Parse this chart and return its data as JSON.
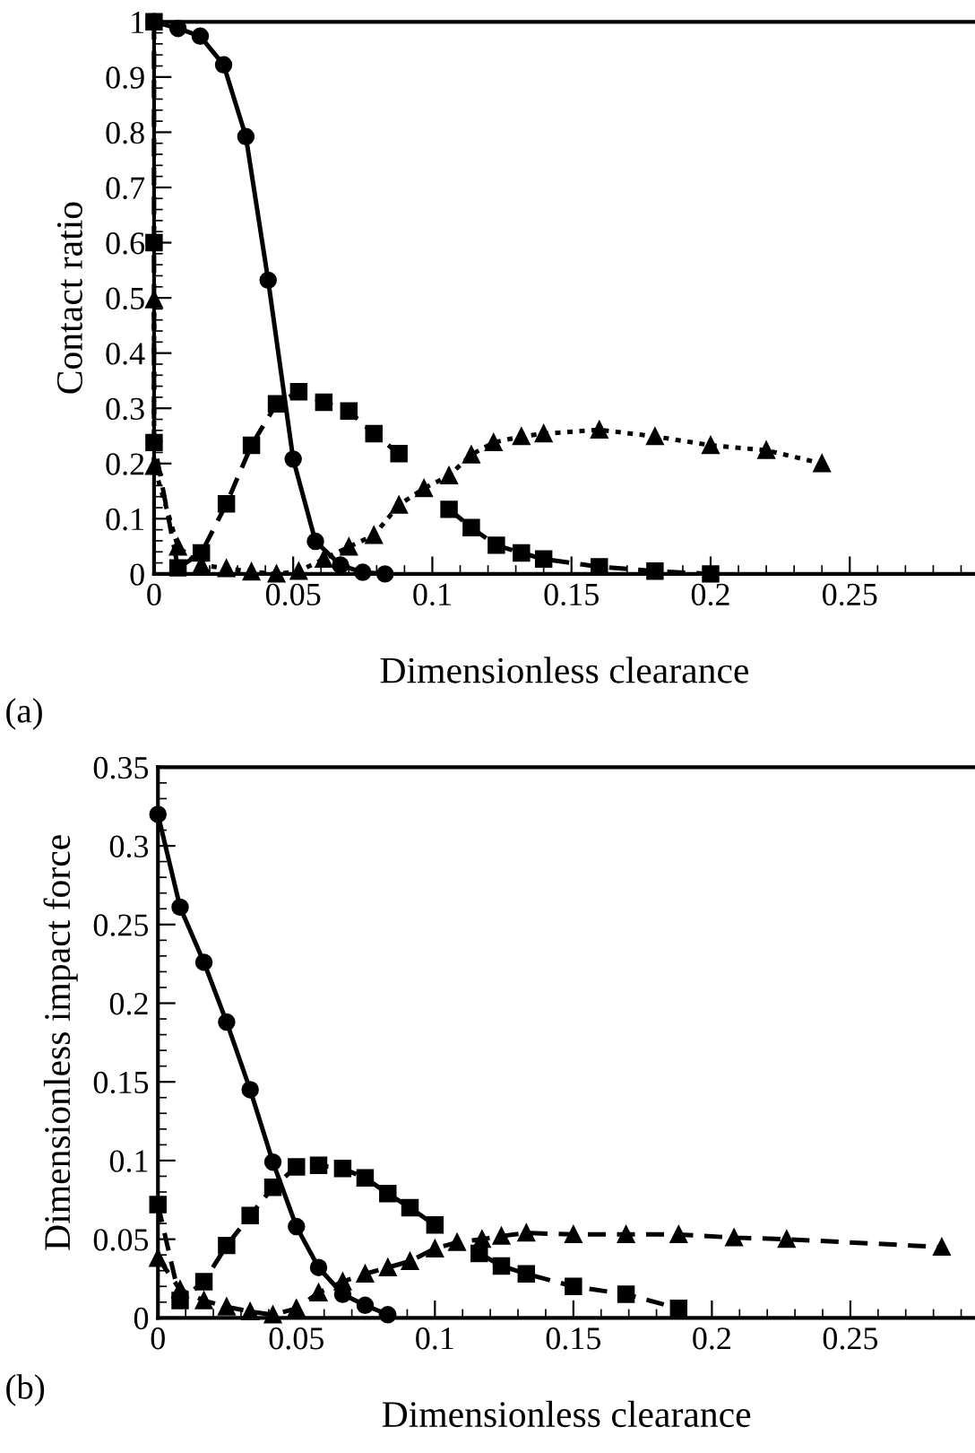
{
  "chart_data": [
    {
      "type": "line",
      "xlabel": "Dimensionless clearance",
      "ylabel": "Contact ratio",
      "annotations": [
        "(a)"
      ],
      "xlim": [
        0,
        0.295
      ],
      "ylim": [
        0,
        1
      ],
      "xticks": [
        0,
        0.05,
        0.1,
        0.15,
        0.2,
        0.25
      ],
      "yticks": [
        0,
        0.1,
        0.2,
        0.3,
        0.4,
        0.5,
        0.6,
        0.7,
        0.8,
        0.9,
        1
      ],
      "grid": false,
      "legend": false,
      "series": [
        {
          "color": "#000000",
          "marker": "circle",
          "line_style": "solid",
          "x": [
            0,
            0.0086,
            0.0166,
            0.025,
            0.033,
            0.041,
            0.05,
            0.058,
            0.067,
            0.075,
            0.083
          ],
          "values": [
            1.0,
            0.988,
            0.974,
            0.922,
            0.792,
            0.532,
            0.208,
            0.059,
            0.016,
            0.003,
            0.0
          ]
        },
        {
          "color": "#000000",
          "marker": "square",
          "line_style": "dashed",
          "x": [
            0,
            0,
            0,
            0.0086,
            0.017,
            0.026,
            0.035,
            0.044,
            0.052,
            0.061,
            0.07,
            0.079,
            0.088,
            0.097,
            0.106,
            0.114,
            0.123,
            0.132,
            0.14,
            0.16,
            0.18,
            0.2
          ],
          "values": [
            1.0,
            0.6,
            0.238,
            0.011,
            0.038,
            0.127,
            0.233,
            0.308,
            0.33,
            0.311,
            0.295,
            0.254,
            0.218,
            null,
            0.117,
            0.084,
            0.052,
            0.038,
            0.027,
            0.013,
            0.005,
            0.0
          ]
        },
        {
          "color": "#000000",
          "marker": "triangle",
          "line_style": "dotted",
          "x": [
            0,
            0,
            0.0086,
            0.017,
            0.026,
            0.035,
            0.044,
            0.052,
            0.061,
            0.07,
            0.079,
            0.088,
            0.097,
            0.106,
            0.114,
            0.122,
            0.132,
            0.14,
            0.16,
            0.18,
            0.2,
            0.22,
            0.24
          ],
          "values": [
            0.497,
            0.195,
            0.049,
            0.016,
            0.01,
            0.004,
            0.0,
            0.005,
            0.027,
            0.049,
            0.07,
            0.125,
            0.155,
            0.178,
            0.216,
            0.238,
            0.249,
            0.254,
            0.261,
            0.249,
            0.233,
            0.224,
            0.2
          ]
        }
      ]
    },
    {
      "type": "line",
      "xlabel": "Dimensionless clearance",
      "ylabel": "Dimensionless impact force",
      "annotations": [
        "(b)"
      ],
      "xlim": [
        0,
        0.295
      ],
      "ylim": [
        0,
        0.35
      ],
      "xticks": [
        0,
        0.05,
        0.1,
        0.15,
        0.2,
        0.25
      ],
      "yticks": [
        0,
        0.05,
        0.1,
        0.15,
        0.2,
        0.25,
        0.3,
        0.35
      ],
      "grid": false,
      "legend": false,
      "series": [
        {
          "color": "#000000",
          "marker": "circle",
          "line_style": "solid",
          "x": [
            0,
            0.008,
            0.0166,
            0.0248,
            0.0333,
            0.0415,
            0.05,
            0.058,
            0.0667,
            0.0748,
            0.083
          ],
          "values": [
            0.32,
            0.261,
            0.226,
            0.188,
            0.145,
            0.099,
            0.058,
            0.032,
            0.015,
            0.008,
            0.002
          ]
        },
        {
          "color": "#000000",
          "marker": "square",
          "line_style": "dashed",
          "x": [
            0,
            0.008,
            0.0166,
            0.0248,
            0.0333,
            0.0415,
            0.05,
            0.058,
            0.0667,
            0.0748,
            0.083,
            0.091,
            0.1,
            0.108,
            0.116,
            0.124,
            0.133,
            0.15,
            0.169,
            0.188
          ],
          "values": [
            0.072,
            0.011,
            0.023,
            0.046,
            0.065,
            0.083,
            0.096,
            0.097,
            0.095,
            0.089,
            0.079,
            0.07,
            0.059,
            null,
            0.041,
            0.033,
            0.028,
            0.02,
            0.015,
            0.006
          ]
        },
        {
          "color": "#000000",
          "marker": "triangle",
          "line_style": "dashed",
          "x": [
            0,
            0.008,
            0.0166,
            0.0248,
            0.0333,
            0.0415,
            0.05,
            0.058,
            0.0667,
            0.0748,
            0.083,
            0.091,
            0.1,
            0.108,
            0.117,
            0.124,
            0.133,
            0.15,
            0.169,
            0.188,
            0.208,
            0.227,
            0.283
          ],
          "values": [
            0.038,
            0.018,
            0.011,
            0.007,
            0.004,
            0.002,
            0.006,
            0.016,
            0.023,
            0.028,
            0.032,
            0.036,
            0.044,
            0.048,
            0.05,
            0.052,
            0.054,
            0.053,
            0.053,
            0.053,
            0.051,
            0.05,
            0.045
          ]
        }
      ]
    }
  ]
}
